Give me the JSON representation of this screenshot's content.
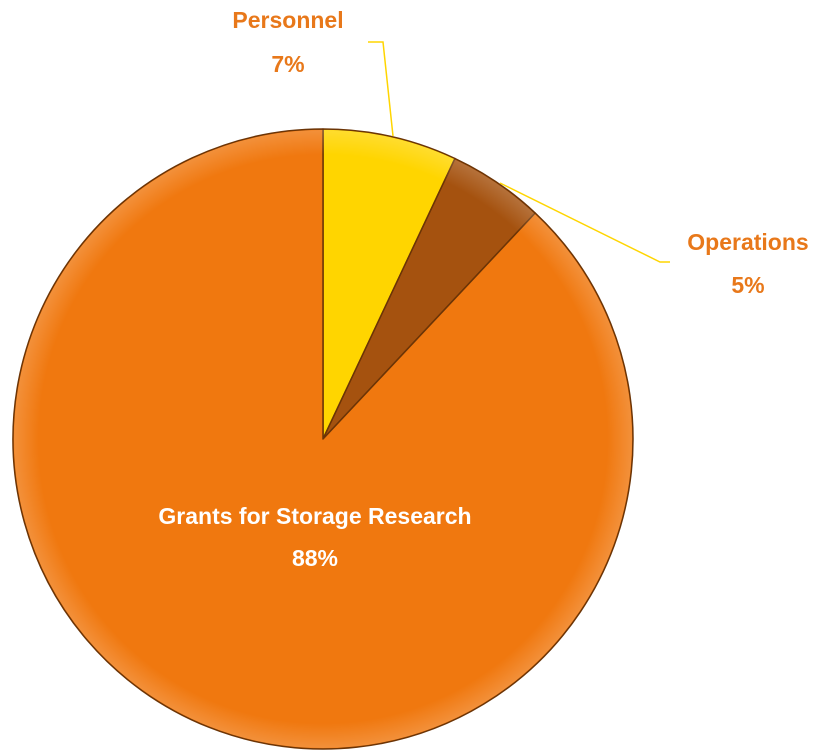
{
  "chart_data": {
    "type": "pie",
    "categories": [
      "Personnel",
      "Operations",
      "Grants for Storage Research"
    ],
    "values": [
      7,
      5,
      88
    ],
    "value_labels": [
      "7%",
      "5%",
      "88%"
    ],
    "colors": [
      "#ffd500",
      "#a5520f",
      "#f0780f"
    ]
  }
}
